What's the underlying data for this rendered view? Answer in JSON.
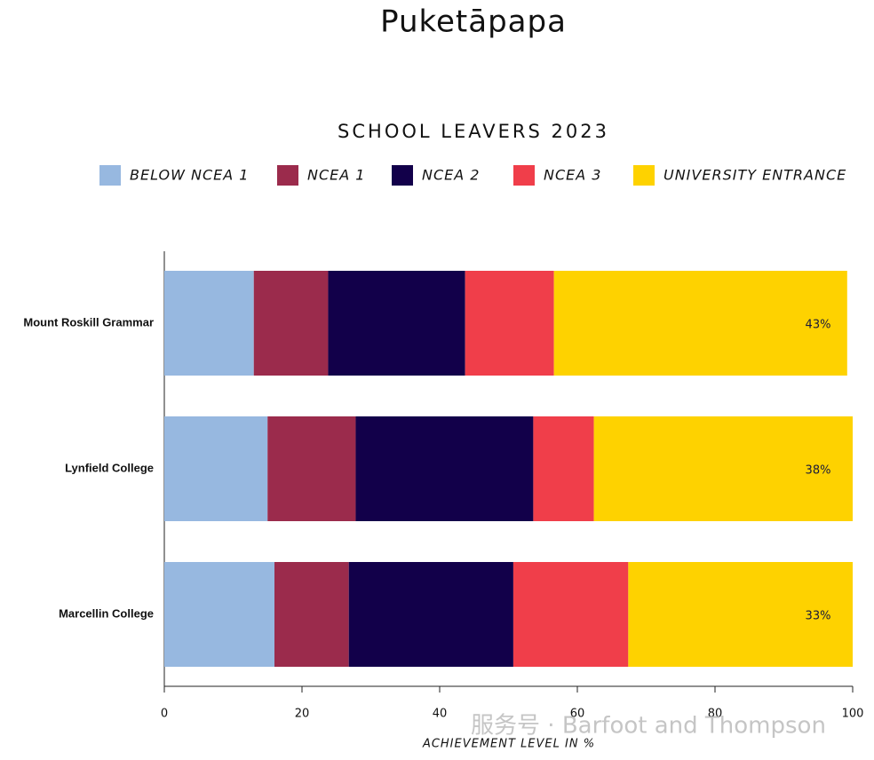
{
  "page_title": "Puketāpapa",
  "watermark": "服务号 · Barfoot and Thompson",
  "chart_data": {
    "type": "stacked-barh",
    "title": "SCHOOL LEAVERS 2023",
    "x_label": "ACHIEVEMENT LEVEL IN %",
    "categories": [
      "Mount Roskill Grammar",
      "Lynfield College",
      "Marcellin College"
    ],
    "series": [
      {
        "name": "BELOW NCEA 1",
        "color": "#97b8e0",
        "values": [
          13.0,
          15.0,
          16.0
        ]
      },
      {
        "name": "NCEA 1",
        "color": "#9b2b4c",
        "values": [
          10.8,
          12.8,
          10.8
        ]
      },
      {
        "name": "NCEA 2",
        "color": "#12004a",
        "values": [
          19.9,
          25.8,
          23.9
        ]
      },
      {
        "name": "NCEA 3",
        "color": "#f03e4a",
        "values": [
          12.9,
          8.8,
          16.7
        ]
      },
      {
        "name": "UNIVERSITY ENTRANCE",
        "color": "#fed200",
        "values": [
          42.6,
          37.6,
          32.6
        ],
        "value_labels": [
          "43%",
          "38%",
          "33%"
        ]
      }
    ],
    "xlim": [
      0,
      100
    ],
    "xticks": [
      0,
      20,
      40,
      60,
      80,
      100
    ],
    "legend": "top"
  }
}
